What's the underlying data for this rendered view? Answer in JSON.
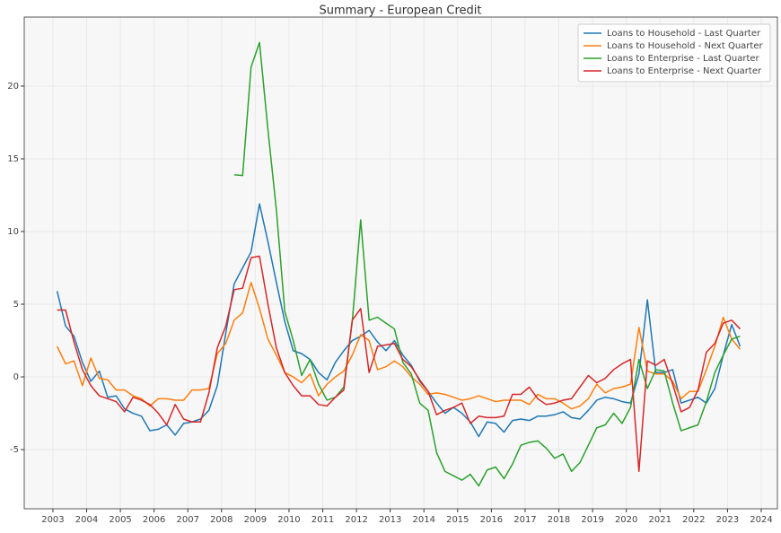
{
  "chart_data": {
    "type": "line",
    "title": "Summary - European Credit",
    "x": [
      2003.125,
      2003.375,
      2003.625,
      2003.875,
      2004.125,
      2004.375,
      2004.625,
      2004.875,
      2005.125,
      2005.375,
      2005.625,
      2005.875,
      2006.125,
      2006.375,
      2006.625,
      2006.875,
      2007.125,
      2007.375,
      2007.625,
      2007.875,
      2008.125,
      2008.375,
      2008.625,
      2008.875,
      2009.125,
      2009.375,
      2009.625,
      2009.875,
      2010.125,
      2010.375,
      2010.625,
      2010.875,
      2011.125,
      2011.375,
      2011.625,
      2011.875,
      2012.125,
      2012.375,
      2012.625,
      2012.875,
      2013.125,
      2013.375,
      2013.625,
      2013.875,
      2014.125,
      2014.375,
      2014.625,
      2014.875,
      2015.125,
      2015.375,
      2015.625,
      2015.875,
      2016.125,
      2016.375,
      2016.625,
      2016.875,
      2017.125,
      2017.375,
      2017.625,
      2017.875,
      2018.125,
      2018.375,
      2018.625,
      2018.875,
      2019.125,
      2019.375,
      2019.625,
      2019.875,
      2020.125,
      2020.375,
      2020.625,
      2020.875,
      2021.125,
      2021.375,
      2021.625,
      2021.875,
      2022.125,
      2022.375,
      2022.625,
      2022.875,
      2023.125,
      2023.375
    ],
    "series": [
      {
        "name": "Loans to Household - Last Quarter",
        "color": "#1f77b4",
        "values": [
          5.9,
          3.5,
          2.8,
          1.0,
          -0.3,
          0.4,
          -1.4,
          -1.3,
          -2.2,
          -2.5,
          -2.7,
          -3.7,
          -3.6,
          -3.3,
          -4.0,
          -3.2,
          -3.1,
          -2.9,
          -2.3,
          -0.6,
          3.0,
          6.4,
          7.5,
          8.6,
          11.9,
          9.3,
          6.5,
          3.8,
          1.8,
          1.6,
          1.2,
          0.3,
          -0.2,
          1.0,
          1.8,
          2.5,
          2.8,
          3.2,
          2.4,
          1.8,
          2.5,
          1.5,
          0.8,
          -0.3,
          -1.0,
          -1.8,
          -2.5,
          -2.1,
          -2.5,
          -3.1,
          -4.1,
          -3.1,
          -3.2,
          -3.8,
          -3.0,
          -2.9,
          -3.0,
          -2.7,
          -2.7,
          -2.6,
          -2.4,
          -2.8,
          -2.9,
          -2.3,
          -1.6,
          -1.4,
          -1.5,
          -1.7,
          -1.8,
          0.2,
          5.3,
          0.3,
          0.3,
          0.5,
          -1.8,
          -1.6,
          -1.4,
          -1.8,
          -0.8,
          1.5,
          3.6,
          2.1
        ]
      },
      {
        "name": "Loans to Household - Next Quarter",
        "color": "#ff7f0e",
        "values": [
          2.1,
          0.9,
          1.1,
          -0.6,
          1.3,
          -0.1,
          -0.2,
          -0.9,
          -0.9,
          -1.3,
          -1.5,
          -2.0,
          -1.5,
          -1.5,
          -1.6,
          -1.6,
          -0.9,
          -0.9,
          -0.8,
          1.6,
          2.3,
          3.9,
          4.4,
          6.5,
          4.7,
          2.6,
          1.5,
          0.3,
          0.0,
          -0.4,
          0.2,
          -1.3,
          -0.5,
          0.0,
          0.4,
          1.5,
          2.9,
          2.5,
          0.5,
          0.7,
          1.1,
          0.7,
          0.0,
          -0.5,
          -1.2,
          -1.1,
          -1.2,
          -1.4,
          -1.6,
          -1.5,
          -1.3,
          -1.5,
          -1.7,
          -1.6,
          -1.6,
          -1.6,
          -1.9,
          -1.2,
          -1.5,
          -1.5,
          -1.8,
          -2.2,
          -2.0,
          -1.5,
          -0.5,
          -1.1,
          -0.8,
          -0.7,
          -0.5,
          3.4,
          0.4,
          0.2,
          0.2,
          -0.3,
          -1.5,
          -1.0,
          -1.0,
          0.5,
          2.1,
          4.1,
          2.6,
          1.9
        ]
      },
      {
        "name": "Loans to Enterprise - Last Quarter",
        "color": "#2ca02c",
        "values": [
          null,
          null,
          null,
          null,
          null,
          null,
          null,
          null,
          null,
          null,
          null,
          null,
          null,
          null,
          null,
          null,
          null,
          null,
          null,
          null,
          null,
          13.9,
          13.85,
          21.3,
          23.0,
          17.0,
          11.5,
          4.5,
          2.5,
          0.1,
          1.2,
          -0.5,
          -1.6,
          -1.4,
          -0.7,
          3.8,
          10.8,
          3.9,
          4.1,
          3.7,
          3.3,
          1.0,
          0.2,
          -1.8,
          -2.3,
          -5.2,
          -6.5,
          -6.8,
          -7.1,
          -6.7,
          -7.5,
          -6.4,
          -6.2,
          -7.0,
          -6.0,
          -4.7,
          -4.5,
          -4.4,
          -4.9,
          -5.6,
          -5.3,
          -6.5,
          -5.9,
          -4.7,
          -3.5,
          -3.3,
          -2.5,
          -3.2,
          -2.1,
          1.2,
          -0.8,
          0.5,
          0.4,
          -1.8,
          -3.7,
          -3.5,
          -3.3,
          -1.7,
          0.3,
          1.5,
          2.6,
          2.8
        ]
      },
      {
        "name": "Loans to Enterprise - Next Quarter",
        "color": "#d62728",
        "values": [
          4.6,
          4.6,
          2.4,
          0.5,
          -0.6,
          -1.3,
          -1.5,
          -1.7,
          -2.4,
          -1.4,
          -1.6,
          -1.9,
          -2.5,
          -3.3,
          -1.9,
          -2.9,
          -3.1,
          -3.1,
          -1.1,
          2.0,
          3.5,
          6.0,
          6.1,
          8.2,
          8.3,
          5.0,
          2.0,
          0.3,
          -0.6,
          -1.3,
          -1.3,
          -1.9,
          -2.0,
          -1.4,
          -0.9,
          3.9,
          4.7,
          0.3,
          2.1,
          2.2,
          2.3,
          1.2,
          0.7,
          -0.2,
          -1.0,
          -2.6,
          -2.3,
          -2.1,
          -1.8,
          -3.2,
          -2.7,
          -2.8,
          -2.8,
          -2.7,
          -1.2,
          -1.2,
          -0.7,
          -1.5,
          -1.9,
          -1.8,
          -1.6,
          -1.5,
          -0.7,
          0.1,
          -0.4,
          -0.1,
          0.5,
          0.9,
          1.2,
          -6.5,
          1.1,
          0.8,
          1.2,
          -0.5,
          -2.4,
          -2.1,
          -0.9,
          1.7,
          2.3,
          3.7,
          3.9,
          3.3
        ]
      }
    ],
    "xlim": [
      2002.15,
      2024.48
    ],
    "ylim": [
      -9.07,
      24.75
    ],
    "xticks": [
      2003,
      2004,
      2005,
      2006,
      2007,
      2008,
      2009,
      2010,
      2011,
      2012,
      2013,
      2014,
      2015,
      2016,
      2017,
      2018,
      2019,
      2020,
      2021,
      2022,
      2023,
      2024
    ],
    "yticks": [
      -5,
      0,
      5,
      10,
      15,
      20
    ],
    "grid": true,
    "legend": "upper right"
  }
}
